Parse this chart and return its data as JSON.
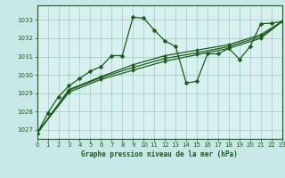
{
  "title": "Graphe pression niveau de la mer (hPa)",
  "bg_color": "#c8e8e8",
  "grid_color": "#99ccbb",
  "line_color": "#1a5c1a",
  "plot_bg": "#d8f0f0",
  "xlim": [
    0,
    23
  ],
  "ylim": [
    1026.5,
    1033.8
  ],
  "yticks": [
    1027,
    1028,
    1029,
    1030,
    1031,
    1032,
    1033
  ],
  "xticks": [
    0,
    1,
    2,
    3,
    4,
    5,
    6,
    7,
    8,
    9,
    10,
    11,
    12,
    13,
    14,
    15,
    16,
    17,
    18,
    19,
    20,
    21,
    22,
    23
  ],
  "series1": [
    [
      0,
      1026.8
    ],
    [
      1,
      1027.9
    ],
    [
      2,
      1028.8
    ],
    [
      3,
      1029.4
    ],
    [
      4,
      1029.8
    ],
    [
      5,
      1030.2
    ],
    [
      6,
      1030.45
    ],
    [
      7,
      1031.05
    ],
    [
      8,
      1031.05
    ],
    [
      9,
      1033.15
    ],
    [
      10,
      1033.1
    ],
    [
      11,
      1032.45
    ],
    [
      12,
      1031.85
    ],
    [
      13,
      1031.55
    ],
    [
      14,
      1029.55
    ],
    [
      15,
      1029.65
    ],
    [
      16,
      1031.15
    ],
    [
      17,
      1031.15
    ],
    [
      18,
      1031.45
    ],
    [
      19,
      1030.85
    ],
    [
      20,
      1031.55
    ],
    [
      21,
      1032.8
    ],
    [
      22,
      1032.82
    ],
    [
      23,
      1032.92
    ]
  ],
  "series2": [
    [
      0,
      1026.8
    ],
    [
      3,
      1029.2
    ],
    [
      6,
      1029.9
    ],
    [
      9,
      1030.55
    ],
    [
      12,
      1031.05
    ],
    [
      15,
      1031.35
    ],
    [
      18,
      1031.65
    ],
    [
      21,
      1032.2
    ],
    [
      23,
      1032.92
    ]
  ],
  "series3": [
    [
      0,
      1026.8
    ],
    [
      3,
      1029.15
    ],
    [
      6,
      1029.85
    ],
    [
      9,
      1030.4
    ],
    [
      12,
      1030.9
    ],
    [
      15,
      1031.2
    ],
    [
      18,
      1031.55
    ],
    [
      21,
      1032.1
    ],
    [
      23,
      1032.92
    ]
  ],
  "series4": [
    [
      0,
      1026.8
    ],
    [
      3,
      1029.05
    ],
    [
      6,
      1029.75
    ],
    [
      9,
      1030.25
    ],
    [
      12,
      1030.75
    ],
    [
      15,
      1031.1
    ],
    [
      18,
      1031.45
    ],
    [
      21,
      1032.0
    ],
    [
      23,
      1032.92
    ]
  ]
}
